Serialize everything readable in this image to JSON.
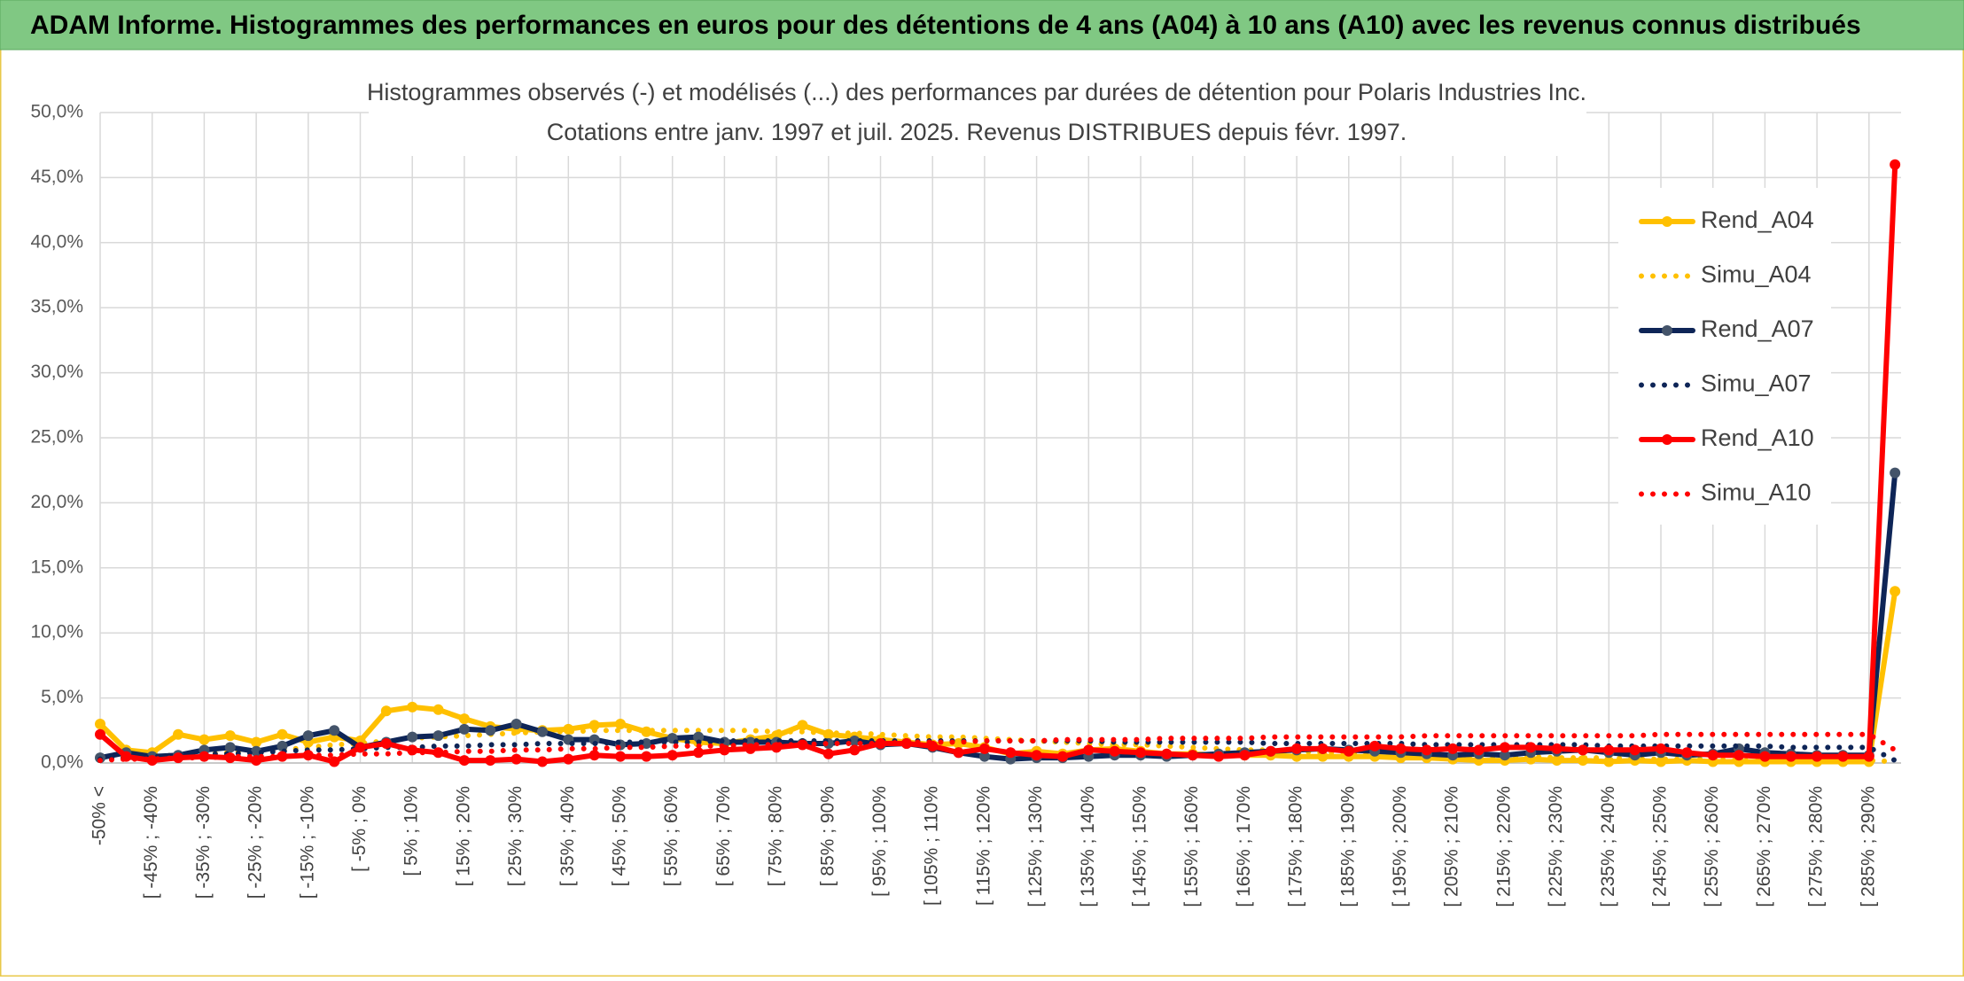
{
  "chart_data": {
    "type": "line",
    "title": "ADAM Informe. Histogrammes des performances en euros pour des détentions de 4 ans (A04) à 10 ans (A10) avec les revenus connus distribués",
    "subtitle": [
      "Histogrammes observés (-) et modélisés (...) des performances par durées de détention pour Polaris Industries Inc.",
      "Cotations entre janv. 1997 et juil. 2025. Revenus DISTRIBUES depuis févr. 1997."
    ],
    "categories": [
      "-50% <",
      null,
      "[ -45% ; -40%",
      null,
      "[ -35% ; -30%",
      null,
      "[ -25% ; -20%",
      null,
      "[ -15% ; -10%",
      null,
      "[ -5% ; 0%",
      null,
      "[ 5% ; 10%",
      null,
      "[ 15% ; 20%",
      null,
      "[ 25% ; 30%",
      null,
      "[ 35% ; 40%",
      null,
      "[ 45% ; 50%",
      null,
      "[ 55% ; 60%",
      null,
      "[ 65% ; 70%",
      null,
      "[ 75% ; 80%",
      null,
      "[ 85% ; 90%",
      null,
      "[ 95% ; 100%",
      null,
      "[ 105% ; 110%",
      null,
      "[ 115% ; 120%",
      null,
      "[ 125% ; 130%",
      null,
      "[ 135% ; 140%",
      null,
      "[ 145% ; 150%",
      null,
      "[ 155% ; 160%",
      null,
      "[ 165% ; 170%",
      null,
      "[ 175% ; 180%",
      null,
      "[ 185% ; 190%",
      null,
      "[ 195% ; 200%",
      null,
      "[ 205% ; 210%",
      null,
      "[ 215% ; 220%",
      null,
      "[ 225% ; 230%",
      null,
      "[ 235% ; 240%",
      null,
      "[ 245% ; 250%",
      null,
      "[ 255% ; 260%",
      null,
      "[ 265% ; 270%",
      null,
      "[ 275% ; 280%",
      null,
      "[ 285% ; 290%",
      null
    ],
    "series": [
      {
        "name": "Rend_A04",
        "color": "#ffc000",
        "line_style": "solid",
        "values": [
          3.0,
          1.0,
          0.8,
          2.2,
          1.8,
          2.1,
          1.6,
          2.2,
          1.6,
          2.0,
          1.7,
          4.0,
          4.3,
          4.1,
          3.4,
          2.8,
          2.6,
          2.5,
          2.6,
          2.9,
          3.0,
          2.4,
          1.9,
          1.6,
          1.5,
          1.8,
          2.1,
          2.9,
          2.2,
          2.0,
          1.8,
          1.6,
          1.4,
          1.5,
          1.2,
          0.7,
          0.9,
          0.7,
          1.0,
          1.1,
          0.9,
          0.7,
          0.7,
          0.6,
          0.6,
          0.6,
          0.5,
          0.5,
          0.5,
          0.5,
          0.4,
          0.4,
          0.3,
          0.2,
          0.2,
          0.3,
          0.2,
          0.2,
          0.1,
          0.2,
          0.1,
          0.2,
          0.1,
          0.1,
          0.1,
          0.1,
          0.1,
          0.1,
          0.1,
          13.2
        ]
      },
      {
        "name": "Simu_A04",
        "color": "#ffc000",
        "line_style": "dotted",
        "values": [
          0.3,
          0.4,
          0.5,
          0.6,
          0.7,
          0.8,
          0.9,
          1.0,
          1.2,
          1.4,
          1.5,
          1.7,
          1.9,
          2.0,
          2.1,
          2.2,
          2.3,
          2.4,
          2.4,
          2.5,
          2.5,
          2.5,
          2.5,
          2.5,
          2.5,
          2.5,
          2.4,
          2.4,
          2.3,
          2.3,
          2.2,
          2.1,
          2.0,
          2.0,
          1.9,
          1.8,
          1.7,
          1.6,
          1.5,
          1.4,
          1.4,
          1.3,
          1.2,
          1.1,
          1.0,
          1.0,
          0.9,
          0.8,
          0.8,
          0.7,
          0.7,
          0.6,
          0.6,
          0.5,
          0.5,
          0.5,
          0.4,
          0.4,
          0.4,
          0.3,
          0.3,
          0.3,
          0.3,
          0.2,
          0.2,
          0.2,
          0.2,
          0.2,
          0.2,
          0.1
        ]
      },
      {
        "name": "Rend_A07",
        "color": "#0e2557",
        "marker_color": "#44546a",
        "line_style": "solid",
        "values": [
          0.4,
          0.8,
          0.5,
          0.6,
          1.0,
          1.2,
          0.9,
          1.3,
          2.1,
          2.5,
          1.2,
          1.6,
          2.0,
          2.1,
          2.6,
          2.5,
          3.0,
          2.4,
          1.8,
          1.8,
          1.4,
          1.5,
          1.9,
          2.0,
          1.6,
          1.6,
          1.6,
          1.5,
          1.5,
          1.7,
          1.4,
          1.5,
          1.2,
          0.8,
          0.5,
          0.3,
          0.4,
          0.4,
          0.5,
          0.6,
          0.6,
          0.5,
          0.6,
          0.7,
          0.8,
          0.9,
          1.0,
          1.1,
          1.0,
          0.9,
          0.8,
          0.7,
          0.6,
          0.7,
          0.6,
          0.8,
          0.9,
          1.0,
          0.8,
          0.6,
          0.8,
          0.6,
          0.7,
          1.1,
          0.8,
          0.7,
          0.6,
          0.6,
          0.6,
          22.3
        ]
      },
      {
        "name": "Simu_A07",
        "color": "#0e2557",
        "line_style": "dotted",
        "values": [
          0.3,
          0.4,
          0.5,
          0.6,
          0.7,
          0.7,
          0.8,
          0.9,
          1.0,
          1.0,
          1.1,
          1.2,
          1.2,
          1.3,
          1.3,
          1.4,
          1.4,
          1.5,
          1.5,
          1.5,
          1.6,
          1.6,
          1.6,
          1.6,
          1.7,
          1.7,
          1.7,
          1.7,
          1.7,
          1.7,
          1.7,
          1.7,
          1.7,
          1.7,
          1.7,
          1.7,
          1.7,
          1.7,
          1.7,
          1.6,
          1.6,
          1.6,
          1.6,
          1.6,
          1.6,
          1.5,
          1.5,
          1.5,
          1.5,
          1.5,
          1.5,
          1.4,
          1.4,
          1.4,
          1.4,
          1.4,
          1.4,
          1.4,
          1.3,
          1.3,
          1.3,
          1.3,
          1.3,
          1.3,
          1.3,
          1.2,
          1.2,
          1.2,
          1.2,
          0.2
        ]
      },
      {
        "name": "Rend_A10",
        "color": "#ff0000",
        "line_style": "solid",
        "values": [
          2.2,
          0.5,
          0.2,
          0.4,
          0.5,
          0.4,
          0.2,
          0.5,
          0.6,
          0.1,
          1.2,
          1.5,
          1.0,
          0.8,
          0.2,
          0.2,
          0.3,
          0.1,
          0.3,
          0.6,
          0.5,
          0.5,
          0.6,
          0.8,
          1.0,
          1.1,
          1.2,
          1.4,
          0.7,
          1.0,
          1.5,
          1.5,
          1.3,
          0.8,
          1.1,
          0.8,
          0.6,
          0.5,
          1.0,
          0.9,
          0.8,
          0.7,
          0.6,
          0.5,
          0.6,
          0.9,
          1.1,
          1.1,
          0.9,
          1.3,
          1.1,
          1.0,
          1.1,
          1.0,
          1.2,
          1.2,
          1.1,
          1.0,
          1.0,
          1.0,
          1.1,
          0.8,
          0.6,
          0.6,
          0.5,
          0.5,
          0.5,
          0.5,
          0.5,
          46.0
        ]
      },
      {
        "name": "Simu_A10",
        "color": "#ff0000",
        "line_style": "dotted",
        "values": [
          0.2,
          0.3,
          0.3,
          0.4,
          0.4,
          0.5,
          0.5,
          0.5,
          0.6,
          0.6,
          0.7,
          0.7,
          0.8,
          0.8,
          0.9,
          0.9,
          1.0,
          1.0,
          1.1,
          1.1,
          1.2,
          1.2,
          1.3,
          1.3,
          1.3,
          1.4,
          1.4,
          1.4,
          1.5,
          1.5,
          1.5,
          1.6,
          1.6,
          1.6,
          1.7,
          1.7,
          1.7,
          1.8,
          1.8,
          1.8,
          1.8,
          1.9,
          1.9,
          1.9,
          1.9,
          2.0,
          2.0,
          2.0,
          2.0,
          2.0,
          2.0,
          2.1,
          2.1,
          2.1,
          2.1,
          2.1,
          2.1,
          2.1,
          2.1,
          2.1,
          2.2,
          2.2,
          2.2,
          2.2,
          2.2,
          2.2,
          2.2,
          2.2,
          2.2,
          1.0
        ]
      }
    ],
    "ylim": [
      0,
      50
    ],
    "yticks": [
      {
        "value": 0,
        "label": "0,0%"
      },
      {
        "value": 5,
        "label": "5,0%"
      },
      {
        "value": 10,
        "label": "10,0%"
      },
      {
        "value": 15,
        "label": "15,0%"
      },
      {
        "value": 20,
        "label": "20,0%"
      },
      {
        "value": 25,
        "label": "25,0%"
      },
      {
        "value": 30,
        "label": "30,0%"
      },
      {
        "value": 35,
        "label": "35,0%"
      },
      {
        "value": 40,
        "label": "40,0%"
      },
      {
        "value": 45,
        "label": "45,0%"
      },
      {
        "value": 50,
        "label": "50,0%"
      }
    ],
    "grid": true,
    "legend": "right"
  }
}
